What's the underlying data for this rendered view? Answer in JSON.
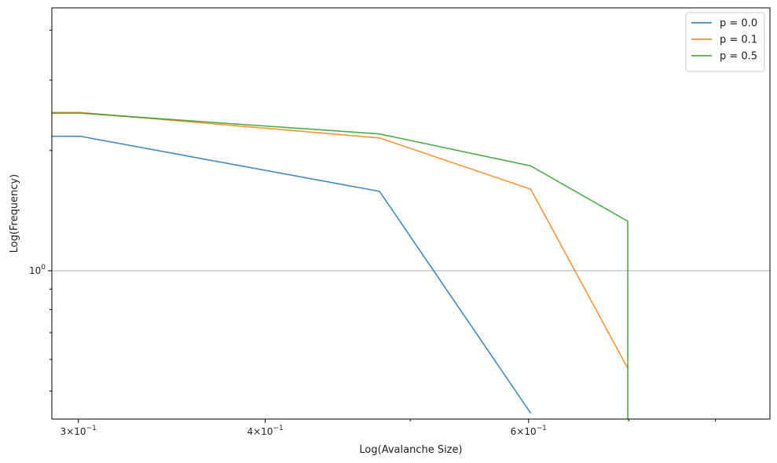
{
  "chart_data": {
    "type": "line",
    "xlabel": "Log(Avalanche Size)",
    "ylabel": "Log(Frequency)",
    "xscale": "log",
    "yscale": "log",
    "xlim": [
      0.288,
      0.87
    ],
    "ylim": [
      0.4255,
      4.55
    ],
    "grid": "horizontal line at y = 10^0",
    "legend_position": "top-right",
    "x_tick_labels": [
      {
        "value": 0.3,
        "base": "3×10",
        "exp": "−1"
      },
      {
        "value": 0.4,
        "base": "4×10",
        "exp": "−1"
      },
      {
        "value": 0.6,
        "base": "6×10",
        "exp": "−1"
      }
    ],
    "x_minor_ticks": [
      0.5,
      0.7,
      0.8
    ],
    "y_tick_labels": [
      {
        "value": 1,
        "base": "10",
        "exp": "0"
      }
    ],
    "y_minor_ticks": [
      0.5,
      0.6,
      0.7,
      0.8,
      0.9,
      2,
      3,
      4
    ],
    "series": [
      {
        "name": "p = 0.0",
        "color": "#1f77b4",
        "x": [
          0.288,
          0.301,
          0.477,
          0.602
        ],
        "y": [
          2.17,
          2.17,
          1.58,
          0.44
        ]
      },
      {
        "name": "p = 0.1",
        "color": "#ff7f0e",
        "x": [
          0.288,
          0.301,
          0.477,
          0.602,
          0.699
        ],
        "y": [
          2.49,
          2.49,
          2.15,
          1.6,
          0.57
        ]
      },
      {
        "name": "p = 0.5",
        "color": "#2ca02c",
        "x": [
          0.288,
          0.301,
          0.477,
          0.602,
          0.699,
          0.699
        ],
        "y": [
          2.48,
          2.48,
          2.2,
          1.83,
          1.33,
          0.4255
        ]
      }
    ]
  }
}
